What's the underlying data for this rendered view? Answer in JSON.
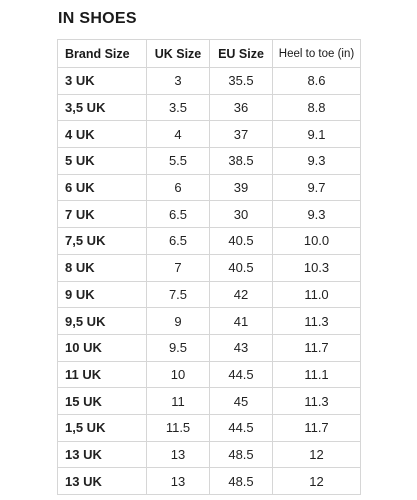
{
  "title": "IN SHOES",
  "table": {
    "headers": [
      "Brand Size",
      "UK Size",
      "EU Size",
      "Heel to toe (in)"
    ],
    "rows": [
      [
        "3 UK",
        "3",
        "35.5",
        "8.6"
      ],
      [
        "3,5 UK",
        "3.5",
        "36",
        "8.8"
      ],
      [
        "4 UK",
        "4",
        "37",
        "9.1"
      ],
      [
        "5 UK",
        "5.5",
        "38.5",
        "9.3"
      ],
      [
        "6 UK",
        "6",
        "39",
        "9.7"
      ],
      [
        "7 UK",
        "6.5",
        "30",
        "9.3"
      ],
      [
        "7,5 UK",
        "6.5",
        "40.5",
        "10.0"
      ],
      [
        "8 UK",
        "7",
        "40.5",
        "10.3"
      ],
      [
        "9 UK",
        "7.5",
        "42",
        "11.0"
      ],
      [
        "9,5 UK",
        "9",
        "41",
        "11.3"
      ],
      [
        "10 UK",
        "9.5",
        "43",
        "11.7"
      ],
      [
        "11 UK",
        "10",
        "44.5",
        "11.1"
      ],
      [
        "15 UK",
        "11",
        "45",
        "11.3"
      ],
      [
        "1,5 UK",
        "11.5",
        "44.5",
        "11.7"
      ],
      [
        "13 UK",
        "13",
        "48.5",
        "12"
      ],
      [
        "13 UK",
        "13",
        "48.5",
        "12"
      ]
    ]
  }
}
